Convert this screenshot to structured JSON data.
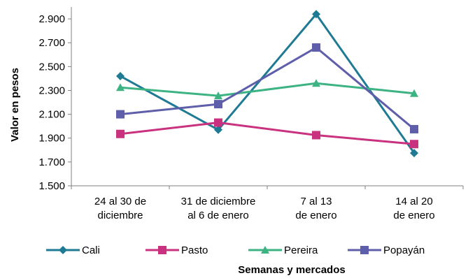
{
  "chart_data": {
    "type": "line",
    "title": "",
    "xlabel": "Semanas y mercados",
    "ylabel": "Valor en pesos",
    "categories": [
      [
        "24 al 30 de",
        "diciembre"
      ],
      [
        "31 de diciembre",
        "al 6 de enero"
      ],
      [
        "7 al 13",
        "de enero"
      ],
      [
        "14 al 20",
        "de enero"
      ]
    ],
    "ylim": [
      1500,
      3000
    ],
    "yticks": [
      1500,
      1700,
      1900,
      2100,
      2300,
      2500,
      2700,
      2900
    ],
    "ytick_labels": [
      "1.500",
      "1.700",
      "1.900",
      "2.100",
      "2.300",
      "2.500",
      "2.700",
      "2.900"
    ],
    "grid": false,
    "legend_position": "bottom",
    "series": [
      {
        "name": "Cali",
        "values": [
          2420,
          1970,
          2940,
          1775
        ],
        "color": "#1F7A93",
        "marker": "diamond"
      },
      {
        "name": "Pasto",
        "values": [
          1935,
          2030,
          1925,
          1850
        ],
        "color": "#C8327F",
        "marker": "square"
      },
      {
        "name": "Pereira",
        "values": [
          2325,
          2255,
          2360,
          2275
        ],
        "color": "#3DB383",
        "marker": "triangle"
      },
      {
        "name": "Popayán",
        "values": [
          2100,
          2185,
          2660,
          1975
        ],
        "color": "#5E5EAA",
        "marker": "square"
      }
    ]
  }
}
